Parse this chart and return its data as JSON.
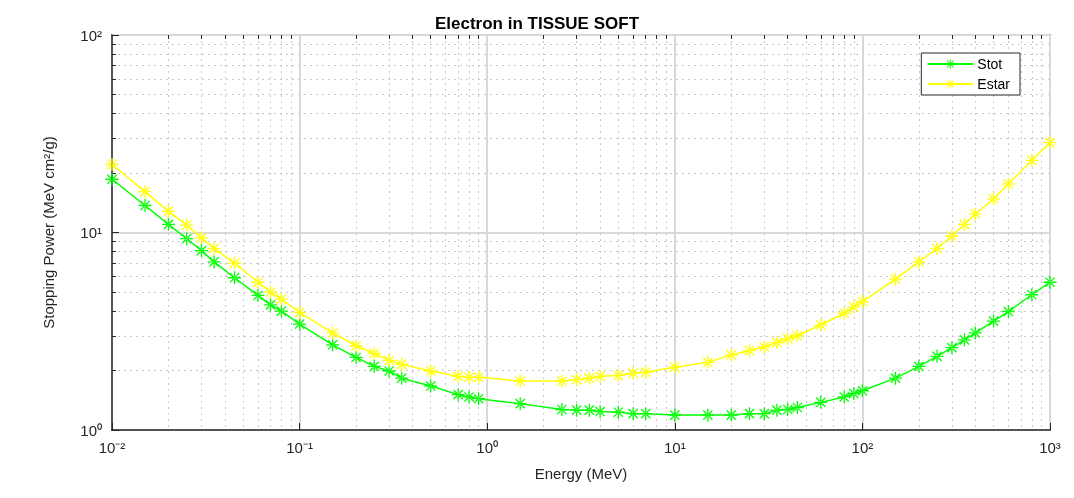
{
  "chart_data": {
    "type": "line",
    "title": "Electron in TISSUE SOFT",
    "xlabel": "Energy (MeV)",
    "ylabel": "Stopping Power (MeV cm²/g)",
    "x": [
      0.01,
      0.015,
      0.02,
      0.025,
      0.03,
      0.035,
      0.045,
      0.06,
      0.07,
      0.08,
      0.1,
      0.15,
      0.2,
      0.25,
      0.3,
      0.35,
      0.5,
      0.7,
      0.8,
      0.9,
      1.5,
      2.5,
      3,
      3.5,
      4,
      5,
      6,
      7,
      10,
      15,
      20,
      25,
      30,
      35,
      40,
      45,
      60,
      80,
      90,
      100,
      150,
      200,
      250,
      300,
      350,
      400,
      500,
      600,
      800,
      1000
    ],
    "series": [
      {
        "name": "Stot",
        "color": "#00ff00",
        "values": [
          18.6,
          13.7,
          11.0,
          9.3,
          8.1,
          7.1,
          5.9,
          4.8,
          4.3,
          4.0,
          3.44,
          2.7,
          2.33,
          2.1,
          1.99,
          1.83,
          1.67,
          1.51,
          1.47,
          1.44,
          1.36,
          1.27,
          1.26,
          1.26,
          1.24,
          1.23,
          1.21,
          1.21,
          1.19,
          1.19,
          1.19,
          1.21,
          1.21,
          1.26,
          1.27,
          1.3,
          1.38,
          1.47,
          1.53,
          1.58,
          1.83,
          2.1,
          2.36,
          2.61,
          2.86,
          3.1,
          3.56,
          3.98,
          4.84,
          5.6
        ]
      },
      {
        "name": "Estar",
        "color": "#ffff00",
        "values": [
          22.1,
          16.1,
          12.8,
          10.9,
          9.4,
          8.3,
          7.0,
          5.6,
          5.0,
          4.6,
          3.94,
          3.1,
          2.67,
          2.44,
          2.25,
          2.15,
          1.99,
          1.87,
          1.85,
          1.85,
          1.77,
          1.77,
          1.8,
          1.83,
          1.87,
          1.89,
          1.94,
          1.96,
          2.08,
          2.2,
          2.4,
          2.52,
          2.64,
          2.77,
          2.9,
          3.0,
          3.4,
          3.9,
          4.2,
          4.47,
          5.8,
          7.1,
          8.3,
          9.6,
          11.0,
          12.4,
          14.8,
          17.6,
          23.2,
          28.5
        ]
      }
    ],
    "log": "xy",
    "xlim": [
      0.01,
      1000
    ],
    "ylim": [
      1,
      100
    ],
    "xticks": [
      {
        "value": 0.01,
        "label": "10⁻²"
      },
      {
        "value": 0.1,
        "label": "10⁻¹"
      },
      {
        "value": 1,
        "label": "10⁰"
      },
      {
        "value": 10,
        "label": "10¹"
      },
      {
        "value": 100,
        "label": "10²"
      },
      {
        "value": 1000,
        "label": "10³"
      }
    ],
    "yticks": [
      {
        "value": 1,
        "label": "10⁰"
      },
      {
        "value": 10,
        "label": "10¹"
      },
      {
        "value": 100,
        "label": "10²"
      }
    ],
    "grid": true,
    "legend": "top right",
    "marker": "star",
    "line_style": "solid"
  }
}
